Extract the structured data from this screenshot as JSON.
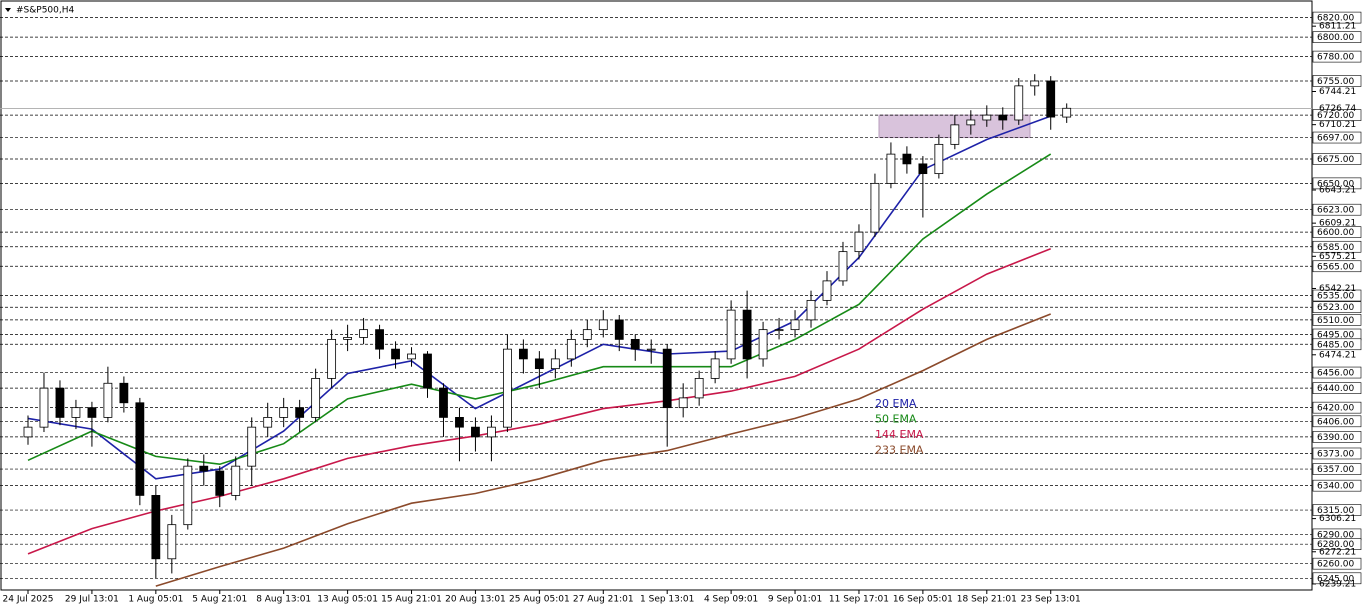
{
  "chart_data": {
    "type": "candlestick",
    "title": "#S&P500,H4",
    "categories": [
      "24 Jul 2025",
      "29 Jul 13:01",
      "1 Aug 05:01",
      "5 Aug 21:01",
      "8 Aug 13:01",
      "13 Aug 05:01",
      "15 Aug 21:01",
      "20 Aug 13:01",
      "25 Aug 05:01",
      "27 Aug 21:01",
      "1 Sep 13:01",
      "4 Sep 09:01",
      "9 Sep 01:01",
      "11 Sep 17:01",
      "16 Sep 05:01",
      "18 Sep 21:01",
      "23 Sep 13:01"
    ],
    "candles": [
      [
        6390,
        6412,
        6382,
        6400
      ],
      [
        6400,
        6456,
        6395,
        6440
      ],
      [
        6440,
        6448,
        6402,
        6410
      ],
      [
        6410,
        6428,
        6398,
        6420
      ],
      [
        6420,
        6426,
        6380,
        6410
      ],
      [
        6410,
        6462,
        6405,
        6445
      ],
      [
        6445,
        6452,
        6415,
        6425
      ],
      [
        6425,
        6430,
        6320,
        6330
      ],
      [
        6330,
        6340,
        6245,
        6265
      ],
      [
        6265,
        6310,
        6250,
        6300
      ],
      [
        6300,
        6368,
        6295,
        6360
      ],
      [
        6360,
        6372,
        6340,
        6355
      ],
      [
        6355,
        6360,
        6318,
        6330
      ],
      [
        6330,
        6370,
        6325,
        6360
      ],
      [
        6360,
        6410,
        6340,
        6400
      ],
      [
        6400,
        6425,
        6390,
        6410
      ],
      [
        6410,
        6430,
        6400,
        6420
      ],
      [
        6420,
        6428,
        6395,
        6410
      ],
      [
        6410,
        6460,
        6405,
        6450
      ],
      [
        6450,
        6500,
        6440,
        6490
      ],
      [
        6490,
        6505,
        6478,
        6492
      ],
      [
        6492,
        6512,
        6485,
        6500
      ],
      [
        6500,
        6505,
        6470,
        6480
      ],
      [
        6480,
        6488,
        6460,
        6470
      ],
      [
        6470,
        6482,
        6462,
        6475
      ],
      [
        6475,
        6478,
        6430,
        6440
      ],
      [
        6440,
        6445,
        6390,
        6410
      ],
      [
        6410,
        6420,
        6365,
        6400
      ],
      [
        6400,
        6410,
        6375,
        6390
      ],
      [
        6390,
        6412,
        6365,
        6400
      ],
      [
        6400,
        6495,
        6395,
        6480
      ],
      [
        6480,
        6490,
        6455,
        6470
      ],
      [
        6470,
        6478,
        6440,
        6460
      ],
      [
        6460,
        6480,
        6450,
        6470
      ],
      [
        6470,
        6500,
        6462,
        6490
      ],
      [
        6490,
        6510,
        6482,
        6500
      ],
      [
        6500,
        6520,
        6492,
        6510
      ],
      [
        6510,
        6515,
        6478,
        6490
      ],
      [
        6490,
        6495,
        6468,
        6480
      ],
      [
        6480,
        6490,
        6465,
        6480
      ],
      [
        6480,
        6485,
        6380,
        6420
      ],
      [
        6420,
        6445,
        6410,
        6430
      ],
      [
        6430,
        6458,
        6422,
        6450
      ],
      [
        6450,
        6478,
        6445,
        6470
      ],
      [
        6470,
        6530,
        6465,
        6520
      ],
      [
        6520,
        6540,
        6450,
        6470
      ],
      [
        6470,
        6508,
        6462,
        6500
      ],
      [
        6500,
        6512,
        6490,
        6500
      ],
      [
        6500,
        6520,
        6492,
        6510
      ],
      [
        6510,
        6540,
        6502,
        6530
      ],
      [
        6530,
        6560,
        6525,
        6550
      ],
      [
        6550,
        6590,
        6545,
        6580
      ],
      [
        6580,
        6608,
        6572,
        6600
      ],
      [
        6600,
        6660,
        6595,
        6650
      ],
      [
        6650,
        6692,
        6645,
        6680
      ],
      [
        6680,
        6688,
        6660,
        6670
      ],
      [
        6670,
        6678,
        6615,
        6660
      ],
      [
        6660,
        6700,
        6655,
        6690
      ],
      [
        6690,
        6720,
        6685,
        6710
      ],
      [
        6710,
        6725,
        6700,
        6715
      ],
      [
        6715,
        6730,
        6708,
        6720
      ],
      [
        6720,
        6728,
        6705,
        6715
      ],
      [
        6715,
        6758,
        6710,
        6750
      ],
      [
        6750,
        6762,
        6740,
        6755
      ],
      [
        6755,
        6760,
        6705,
        6718
      ],
      [
        6718,
        6732,
        6712,
        6727
      ]
    ],
    "series": [
      {
        "name": "20 EMA",
        "color": "#1e22a8",
        "values": [
          6409,
          6398,
          6347,
          6357,
          6396,
          6455,
          6468,
          6419,
          6452,
          6485,
          6475,
          6478,
          6509,
          6574,
          6664,
          6695,
          6719
        ]
      },
      {
        "name": "50 EMA",
        "color": "#178a17",
        "values": [
          6366,
          6396,
          6370,
          6362,
          6383,
          6429,
          6444,
          6429,
          6444,
          6462,
          6462,
          6462,
          6490,
          6526,
          6593,
          6639,
          6680
        ]
      },
      {
        "name": "144 EMA",
        "color": "#c8184a",
        "values": [
          6270,
          6296,
          6314,
          6329,
          6347,
          6368,
          6381,
          6391,
          6403,
          6419,
          6427,
          6437,
          6452,
          6480,
          6521,
          6557,
          6583
        ]
      },
      {
        "name": "233 EMA",
        "color": "#8b4a2b",
        "values": [
          null,
          null,
          6237,
          6257,
          6276,
          6301,
          6322,
          6332,
          6347,
          6366,
          6376,
          6393,
          6409,
          6429,
          6458,
          6490,
          6516
        ]
      }
    ],
    "zone": [
      6697,
      6720
    ],
    "ylim": [
      6233,
      6836
    ],
    "levels": [
      {
        "value": 6820,
        "label": "6820.00"
      },
      {
        "value": 6800,
        "label": "6800.00"
      },
      {
        "value": 6780,
        "label": "6780.00"
      },
      {
        "value": 6755,
        "label": "6755.00"
      },
      {
        "value": 6720,
        "label": "6720.00"
      },
      {
        "value": 6697,
        "label": "6697.00"
      },
      {
        "value": 6675,
        "label": "6675.00"
      },
      {
        "value": 6650,
        "label": "6650.00"
      },
      {
        "value": 6623,
        "label": "6623.00"
      },
      {
        "value": 6600,
        "label": "6600.00"
      },
      {
        "value": 6585,
        "label": "6585.00"
      },
      {
        "value": 6565,
        "label": "6565.00"
      },
      {
        "value": 6535,
        "label": "6535.00"
      },
      {
        "value": 6523,
        "label": "6523.00"
      },
      {
        "value": 6510,
        "label": "6510.00"
      },
      {
        "value": 6495,
        "label": "6495.00"
      },
      {
        "value": 6485,
        "label": "6485.00"
      },
      {
        "value": 6456,
        "label": "6456.00"
      },
      {
        "value": 6440,
        "label": "6440.00"
      },
      {
        "value": 6420,
        "label": "6420.00"
      },
      {
        "value": 6406,
        "label": "6406.00"
      },
      {
        "value": 6390,
        "label": "6390.00"
      },
      {
        "value": 6373,
        "label": "6373.00"
      },
      {
        "value": 6357,
        "label": "6357.00"
      },
      {
        "value": 6340,
        "label": "6340.00"
      },
      {
        "value": 6315,
        "label": "6315.00"
      },
      {
        "value": 6290,
        "label": "6290.00"
      },
      {
        "value": 6280,
        "label": "6280.00"
      },
      {
        "value": 6260,
        "label": "6260.00"
      },
      {
        "value": 6245,
        "label": "6245.00"
      }
    ],
    "yticks": [
      {
        "value": 6811.21,
        "label": "6811.21"
      },
      {
        "value": 6744.21,
        "label": "6744.21"
      },
      {
        "value": 6710.21,
        "label": "6710.21"
      },
      {
        "value": 6643.21,
        "label": "6643.21"
      },
      {
        "value": 6609.21,
        "label": "6609.21"
      },
      {
        "value": 6575.21,
        "label": "6575.21"
      },
      {
        "value": 6542.21,
        "label": "6542.21"
      },
      {
        "value": 6474.21,
        "label": "6474.21"
      },
      {
        "value": 6306.21,
        "label": "6306.21"
      },
      {
        "value": 6272.21,
        "label": "6272.21"
      },
      {
        "value": 6239.21,
        "label": "6239.21"
      }
    ],
    "last_price": 6726.74
  }
}
